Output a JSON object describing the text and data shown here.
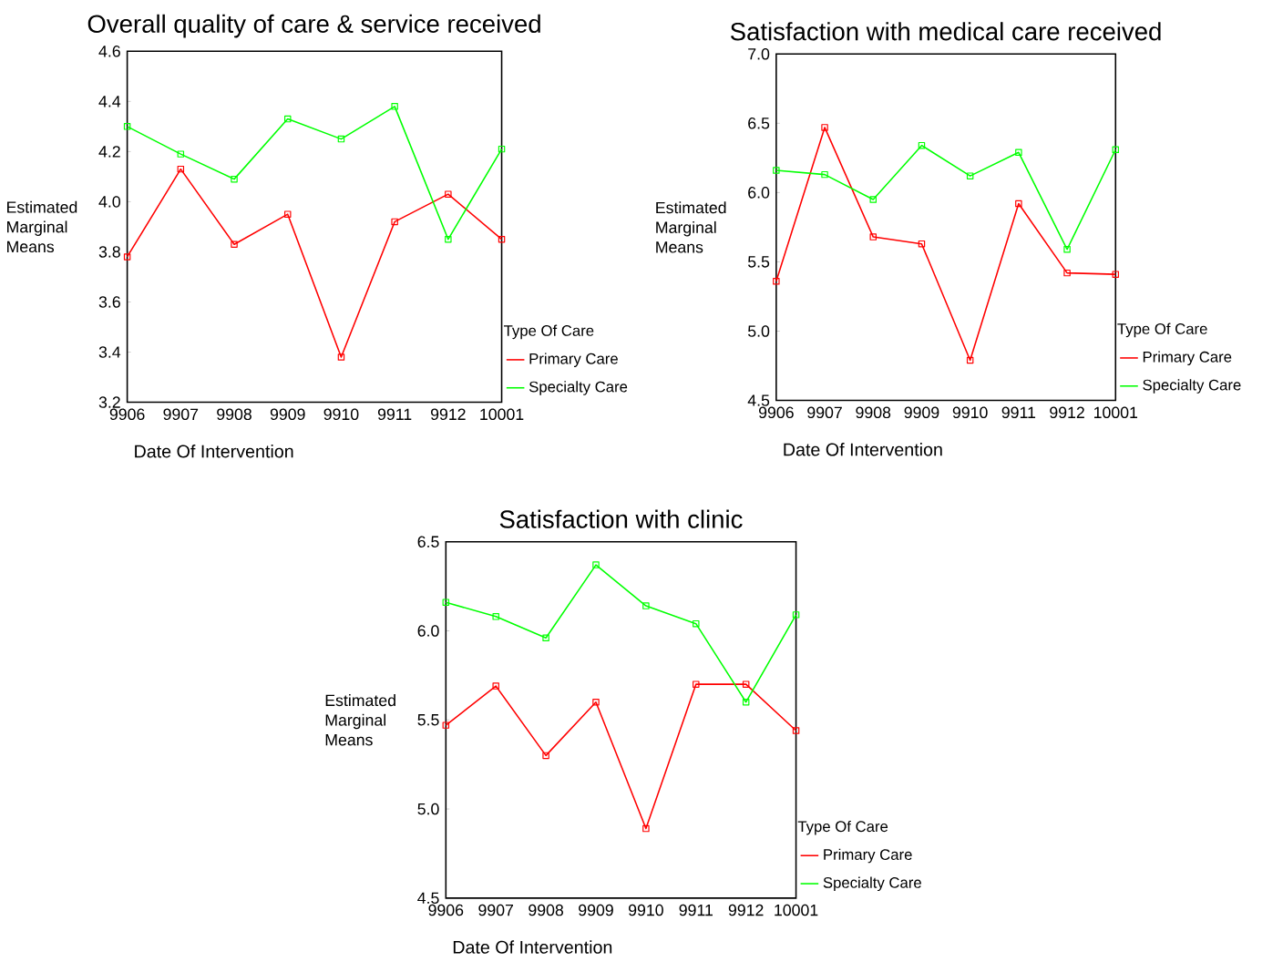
{
  "chart_data": [
    {
      "type": "line",
      "title": "Overall quality of care & service received",
      "xlabel": "Date Of Intervention",
      "ylabel": "Estimated Marginal Means",
      "legend_title": "Type Of Care",
      "legend": "right",
      "marker": "square",
      "grid": false,
      "categories": [
        "9906",
        "9907",
        "9908",
        "9909",
        "9910",
        "9911",
        "9912",
        "10001"
      ],
      "ylim": [
        3.2,
        4.6
      ],
      "yticks": [
        3.2,
        3.4,
        3.6,
        3.8,
        {
          "value": 4.0,
          "label": "4.0"
        },
        4.2,
        4.4,
        4.6
      ],
      "series": [
        {
          "name": "Primary Care",
          "color": "#ff0000",
          "values": [
            3.78,
            4.13,
            3.83,
            3.95,
            3.38,
            3.92,
            4.03,
            3.85
          ]
        },
        {
          "name": "Specialty Care",
          "color": "#00ff00",
          "values": [
            4.3,
            4.19,
            4.09,
            4.33,
            4.25,
            4.38,
            3.85,
            4.21
          ]
        }
      ]
    },
    {
      "type": "line",
      "title": "Satisfaction with medical care received",
      "xlabel": "Date Of Intervention",
      "ylabel": "Estimated Marginal Means",
      "legend_title": "Type Of Care",
      "legend": "right",
      "marker": "square",
      "grid": false,
      "categories": [
        "9906",
        "9907",
        "9908",
        "9909",
        "9910",
        "9911",
        "9912",
        "10001"
      ],
      "ylim": [
        4.5,
        7.0
      ],
      "yticks": [
        4.5,
        {
          "value": 5.0,
          "label": "5.0"
        },
        5.5,
        {
          "value": 6.0,
          "label": "6.0"
        },
        6.5,
        {
          "value": 7.0,
          "label": "7.0"
        }
      ],
      "series": [
        {
          "name": "Primary Care",
          "color": "#ff0000",
          "values": [
            5.36,
            6.47,
            5.68,
            5.63,
            4.79,
            5.92,
            5.42,
            5.41
          ]
        },
        {
          "name": "Specialty Care",
          "color": "#00ff00",
          "values": [
            6.16,
            6.13,
            5.95,
            6.34,
            6.12,
            6.29,
            5.59,
            6.31
          ]
        }
      ]
    },
    {
      "type": "line",
      "title": "Satisfaction with clinic",
      "xlabel": "Date Of Intervention",
      "ylabel": "Estimated Marginal Means",
      "legend_title": "Type Of Care",
      "legend": "right",
      "marker": "square",
      "grid": false,
      "categories": [
        "9906",
        "9907",
        "9908",
        "9909",
        "9910",
        "9911",
        "9912",
        "10001"
      ],
      "ylim": [
        4.5,
        6.5
      ],
      "yticks": [
        4.5,
        {
          "value": 5.0,
          "label": "5.0"
        },
        5.5,
        {
          "value": 6.0,
          "label": "6.0"
        },
        6.5
      ],
      "series": [
        {
          "name": "Primary Care",
          "color": "#ff0000",
          "values": [
            5.47,
            5.69,
            5.3,
            5.6,
            4.89,
            5.7,
            5.7,
            5.44
          ]
        },
        {
          "name": "Specialty Care",
          "color": "#00ff00",
          "values": [
            6.16,
            6.08,
            5.96,
            6.37,
            6.14,
            6.04,
            5.6,
            6.09
          ]
        }
      ]
    }
  ]
}
